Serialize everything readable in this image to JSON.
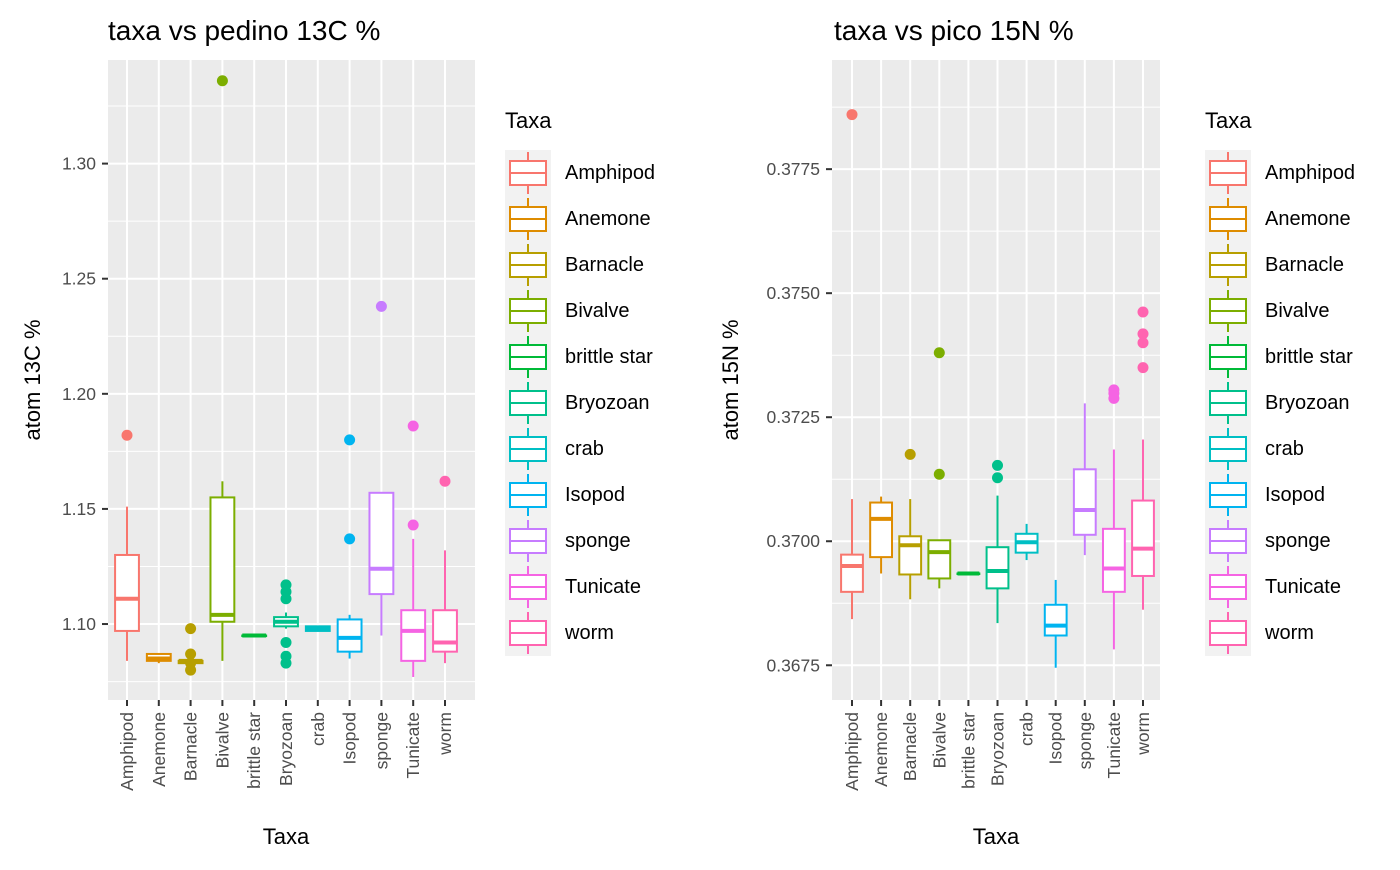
{
  "colors": {
    "panel_bg": "#EBEBEB",
    "grid": "#FFFFFF",
    "tick_text": "#4D4D4D",
    "title_text": "#000000"
  },
  "taxa_colors": {
    "Amphipod": "#F8766D",
    "Anemone": "#DE8C00",
    "Barnacle": "#B79F00",
    "Bivalve": "#7CAE00",
    "brittle star": "#00BA38",
    "Bryozoan": "#00C08B",
    "crab": "#00BFC4",
    "Isopod": "#00B4F0",
    "sponge": "#C77CFF",
    "Tunicate": "#F564E3",
    "worm": "#FF64B0"
  },
  "chart_data": [
    {
      "type": "boxplot",
      "title": "taxa vs pedino 13C %",
      "xlabel": "Taxa",
      "ylabel": "atom 13C %",
      "ylim": [
        1.067,
        1.345
      ],
      "yticks": [
        1.1,
        1.15,
        1.2,
        1.25,
        1.3
      ],
      "ytick_labels": [
        "1.10",
        "1.15",
        "1.20",
        "1.25",
        "1.30"
      ],
      "grid": true,
      "legend": {
        "title": "Taxa",
        "position": "right"
      },
      "categories": [
        "Amphipod",
        "Anemone",
        "Barnacle",
        "Bivalve",
        "brittle star",
        "Bryozoan",
        "crab",
        "Isopod",
        "sponge",
        "Tunicate",
        "worm"
      ],
      "boxes": [
        {
          "taxon": "Amphipod",
          "lower_whisker": 1.084,
          "q1": 1.097,
          "median": 1.111,
          "q3": 1.13,
          "upper_whisker": 1.151,
          "outliers": [
            1.182
          ]
        },
        {
          "taxon": "Anemone",
          "lower_whisker": 1.083,
          "q1": 1.084,
          "median": 1.085,
          "q3": 1.087,
          "upper_whisker": 1.087,
          "outliers": []
        },
        {
          "taxon": "Barnacle",
          "lower_whisker": 1.082,
          "q1": 1.083,
          "median": 1.084,
          "q3": 1.084,
          "upper_whisker": 1.085,
          "outliers": [
            1.098,
            1.087,
            1.083,
            1.08
          ]
        },
        {
          "taxon": "Bivalve",
          "lower_whisker": 1.084,
          "q1": 1.101,
          "median": 1.104,
          "q3": 1.155,
          "upper_whisker": 1.162,
          "outliers": [
            1.336
          ]
        },
        {
          "taxon": "brittle star",
          "lower_whisker": 1.095,
          "q1": 1.095,
          "median": 1.095,
          "q3": 1.095,
          "upper_whisker": 1.095,
          "outliers": []
        },
        {
          "taxon": "Bryozoan",
          "lower_whisker": 1.098,
          "q1": 1.099,
          "median": 1.101,
          "q3": 1.103,
          "upper_whisker": 1.105,
          "outliers": [
            1.117,
            1.114,
            1.111,
            1.092,
            1.086,
            1.083
          ]
        },
        {
          "taxon": "crab",
          "lower_whisker": 1.097,
          "q1": 1.097,
          "median": 1.098,
          "q3": 1.099,
          "upper_whisker": 1.099,
          "outliers": []
        },
        {
          "taxon": "Isopod",
          "lower_whisker": 1.085,
          "q1": 1.088,
          "median": 1.094,
          "q3": 1.102,
          "upper_whisker": 1.104,
          "outliers": [
            1.18,
            1.137
          ]
        },
        {
          "taxon": "sponge",
          "lower_whisker": 1.095,
          "q1": 1.113,
          "median": 1.124,
          "q3": 1.157,
          "upper_whisker": 1.157,
          "outliers": [
            1.238
          ]
        },
        {
          "taxon": "Tunicate",
          "lower_whisker": 1.077,
          "q1": 1.084,
          "median": 1.097,
          "q3": 1.106,
          "upper_whisker": 1.137,
          "outliers": [
            1.186,
            1.143
          ]
        },
        {
          "taxon": "worm",
          "lower_whisker": 1.083,
          "q1": 1.088,
          "median": 1.092,
          "q3": 1.106,
          "upper_whisker": 1.132,
          "outliers": [
            1.162
          ]
        }
      ]
    },
    {
      "type": "boxplot",
      "title": "taxa vs pico 15N %",
      "xlabel": "Taxa",
      "ylabel": "atom 15N %",
      "ylim": [
        0.3668,
        0.3797
      ],
      "yticks": [
        0.3675,
        0.37,
        0.3725,
        0.375,
        0.3775
      ],
      "ytick_labels": [
        "0.3675",
        "0.3700",
        "0.3725",
        "0.3750",
        "0.3775"
      ],
      "grid": true,
      "legend": {
        "title": "Taxa",
        "position": "right"
      },
      "categories": [
        "Amphipod",
        "Anemone",
        "Barnacle",
        "Bivalve",
        "brittle star",
        "Bryozoan",
        "crab",
        "Isopod",
        "sponge",
        "Tunicate",
        "worm"
      ],
      "boxes": [
        {
          "taxon": "Amphipod",
          "lower_whisker": 0.36843,
          "q1": 0.36898,
          "median": 0.3695,
          "q3": 0.36973,
          "upper_whisker": 0.37085,
          "outliers": [
            0.3786
          ]
        },
        {
          "taxon": "Anemone",
          "lower_whisker": 0.36935,
          "q1": 0.36968,
          "median": 0.37045,
          "q3": 0.37078,
          "upper_whisker": 0.3709,
          "outliers": []
        },
        {
          "taxon": "Barnacle",
          "lower_whisker": 0.36883,
          "q1": 0.36933,
          "median": 0.36992,
          "q3": 0.3701,
          "upper_whisker": 0.37085,
          "outliers": [
            0.37175
          ]
        },
        {
          "taxon": "Bivalve",
          "lower_whisker": 0.36905,
          "q1": 0.36925,
          "median": 0.36978,
          "q3": 0.37002,
          "upper_whisker": 0.37002,
          "outliers": [
            0.3738,
            0.37135
          ]
        },
        {
          "taxon": "brittle star",
          "lower_whisker": 0.36935,
          "q1": 0.36935,
          "median": 0.36935,
          "q3": 0.36935,
          "upper_whisker": 0.36935,
          "outliers": []
        },
        {
          "taxon": "Bryozoan",
          "lower_whisker": 0.36835,
          "q1": 0.36905,
          "median": 0.3694,
          "q3": 0.36988,
          "upper_whisker": 0.37092,
          "outliers": [
            0.37153,
            0.37128
          ]
        },
        {
          "taxon": "crab",
          "lower_whisker": 0.36962,
          "q1": 0.36977,
          "median": 0.36998,
          "q3": 0.37015,
          "upper_whisker": 0.37035,
          "outliers": []
        },
        {
          "taxon": "Isopod",
          "lower_whisker": 0.36745,
          "q1": 0.3681,
          "median": 0.3683,
          "q3": 0.36872,
          "upper_whisker": 0.36922,
          "outliers": []
        },
        {
          "taxon": "sponge",
          "lower_whisker": 0.36972,
          "q1": 0.37013,
          "median": 0.37063,
          "q3": 0.37145,
          "upper_whisker": 0.37278,
          "outliers": []
        },
        {
          "taxon": "Tunicate",
          "lower_whisker": 0.36782,
          "q1": 0.36898,
          "median": 0.36945,
          "q3": 0.37025,
          "upper_whisker": 0.37185,
          "outliers": [
            0.37305,
            0.37298,
            0.37288
          ]
        },
        {
          "taxon": "worm",
          "lower_whisker": 0.36862,
          "q1": 0.3693,
          "median": 0.36985,
          "q3": 0.37082,
          "upper_whisker": 0.37205,
          "outliers": [
            0.37462,
            0.37418,
            0.374,
            0.3735
          ]
        }
      ]
    }
  ]
}
